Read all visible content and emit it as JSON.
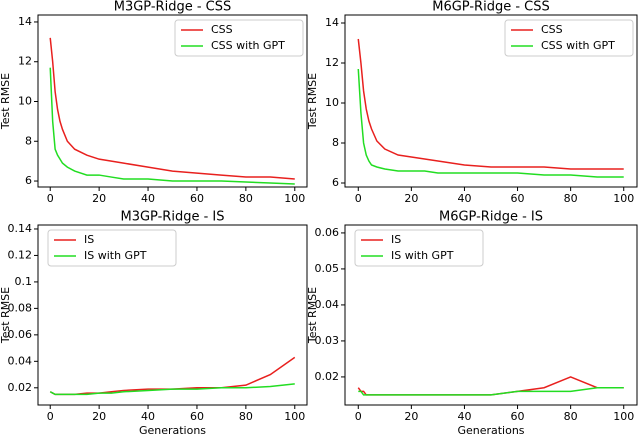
{
  "chart_data": [
    {
      "type": "line",
      "title": "M3GP-Ridge - CSS",
      "ylabel": "Test RMSE",
      "legend": "upper right",
      "x": [
        0,
        1,
        2,
        3,
        4,
        5,
        7,
        10,
        15,
        20,
        25,
        30,
        40,
        50,
        60,
        70,
        80,
        90,
        100
      ],
      "xlim": [
        -5,
        105
      ],
      "xticks": [
        0,
        20,
        40,
        60,
        80,
        100
      ],
      "ylim": [
        5.7,
        14.35
      ],
      "yticks": [
        6,
        8,
        10,
        12,
        14
      ],
      "series": [
        {
          "name": "CSS",
          "color": "#e8201e",
          "values": [
            13.2,
            12,
            10.5,
            9.6,
            9.0,
            8.6,
            8.0,
            7.6,
            7.3,
            7.1,
            7.0,
            6.9,
            6.7,
            6.5,
            6.4,
            6.3,
            6.2,
            6.2,
            6.1
          ]
        },
        {
          "name": "CSS with GPT",
          "color": "#22dd22",
          "values": [
            11.7,
            9,
            7.6,
            7.3,
            7.1,
            6.9,
            6.7,
            6.5,
            6.3,
            6.3,
            6.2,
            6.1,
            6.1,
            6.0,
            6.0,
            6.0,
            5.95,
            5.9,
            5.85
          ]
        }
      ]
    },
    {
      "type": "line",
      "title": "M6GP-Ridge - CSS",
      "ylabel": "Test RMSE",
      "legend": "upper right",
      "x": [
        0,
        1,
        2,
        3,
        4,
        5,
        7,
        10,
        15,
        20,
        25,
        30,
        40,
        50,
        60,
        70,
        80,
        90,
        100
      ],
      "xlim": [
        -5,
        105
      ],
      "xticks": [
        0,
        20,
        40,
        60,
        80,
        100
      ],
      "ylim": [
        5.8,
        14.4
      ],
      "yticks": [
        6,
        8,
        10,
        12,
        14
      ],
      "series": [
        {
          "name": "CSS",
          "color": "#e8201e",
          "values": [
            13.2,
            12,
            10.6,
            9.7,
            9.1,
            8.7,
            8.1,
            7.7,
            7.4,
            7.3,
            7.2,
            7.1,
            6.9,
            6.8,
            6.8,
            6.8,
            6.7,
            6.7,
            6.7
          ]
        },
        {
          "name": "CSS with GPT",
          "color": "#22dd22",
          "values": [
            11.7,
            9.5,
            8,
            7.4,
            7.1,
            6.9,
            6.8,
            6.7,
            6.6,
            6.6,
            6.6,
            6.5,
            6.5,
            6.5,
            6.5,
            6.4,
            6.4,
            6.3,
            6.3
          ]
        }
      ]
    },
    {
      "type": "line",
      "title": "M3GP-Ridge - IS",
      "ylabel": "Test RMSE",
      "xlabel": "Generations",
      "legend": "upper left",
      "x": [
        0,
        1,
        2,
        3,
        4,
        5,
        7,
        10,
        15,
        20,
        25,
        30,
        40,
        50,
        60,
        70,
        80,
        90,
        100
      ],
      "xlim": [
        -5,
        105
      ],
      "xticks": [
        0,
        20,
        40,
        60,
        80,
        100
      ],
      "ylim": [
        0.007,
        0.143
      ],
      "yticks": [
        0.02,
        0.04,
        0.06,
        0.08,
        0.1,
        0.12,
        0.14
      ],
      "series": [
        {
          "name": "IS",
          "color": "#e8201e",
          "values": [
            0.017,
            0.016,
            0.015,
            0.015,
            0.015,
            0.015,
            0.015,
            0.015,
            0.016,
            0.016,
            0.017,
            0.018,
            0.019,
            0.019,
            0.02,
            0.02,
            0.022,
            0.03,
            0.043
          ]
        },
        {
          "name": "IS with GPT",
          "color": "#22dd22",
          "values": [
            0.017,
            0.016,
            0.015,
            0.015,
            0.015,
            0.015,
            0.015,
            0.015,
            0.015,
            0.016,
            0.016,
            0.017,
            0.018,
            0.019,
            0.019,
            0.02,
            0.02,
            0.021,
            0.023
          ]
        }
      ]
    },
    {
      "type": "line",
      "title": "M6GP-Ridge - IS",
      "ylabel": "Test RMSE",
      "xlabel": "Generations",
      "legend": "upper left",
      "x": [
        0,
        1,
        2,
        3,
        4,
        5,
        7,
        10,
        15,
        20,
        25,
        30,
        40,
        50,
        60,
        70,
        80,
        90,
        100
      ],
      "xlim": [
        -5,
        105
      ],
      "xticks": [
        0,
        20,
        40,
        60,
        80,
        100
      ],
      "ylim": [
        0.0122,
        0.0622
      ],
      "yticks": [
        0.02,
        0.03,
        0.04,
        0.05,
        0.06
      ],
      "series": [
        {
          "name": "IS",
          "color": "#e8201e",
          "values": [
            0.017,
            0.016,
            0.016,
            0.015,
            0.015,
            0.015,
            0.015,
            0.015,
            0.015,
            0.015,
            0.015,
            0.015,
            0.015,
            0.015,
            0.016,
            0.017,
            0.02,
            0.017,
            0.017
          ]
        },
        {
          "name": "IS with GPT",
          "color": "#22dd22",
          "values": [
            0.016,
            0.016,
            0.015,
            0.015,
            0.015,
            0.015,
            0.015,
            0.015,
            0.015,
            0.015,
            0.015,
            0.015,
            0.015,
            0.015,
            0.016,
            0.016,
            0.016,
            0.017,
            0.017
          ]
        }
      ]
    }
  ]
}
